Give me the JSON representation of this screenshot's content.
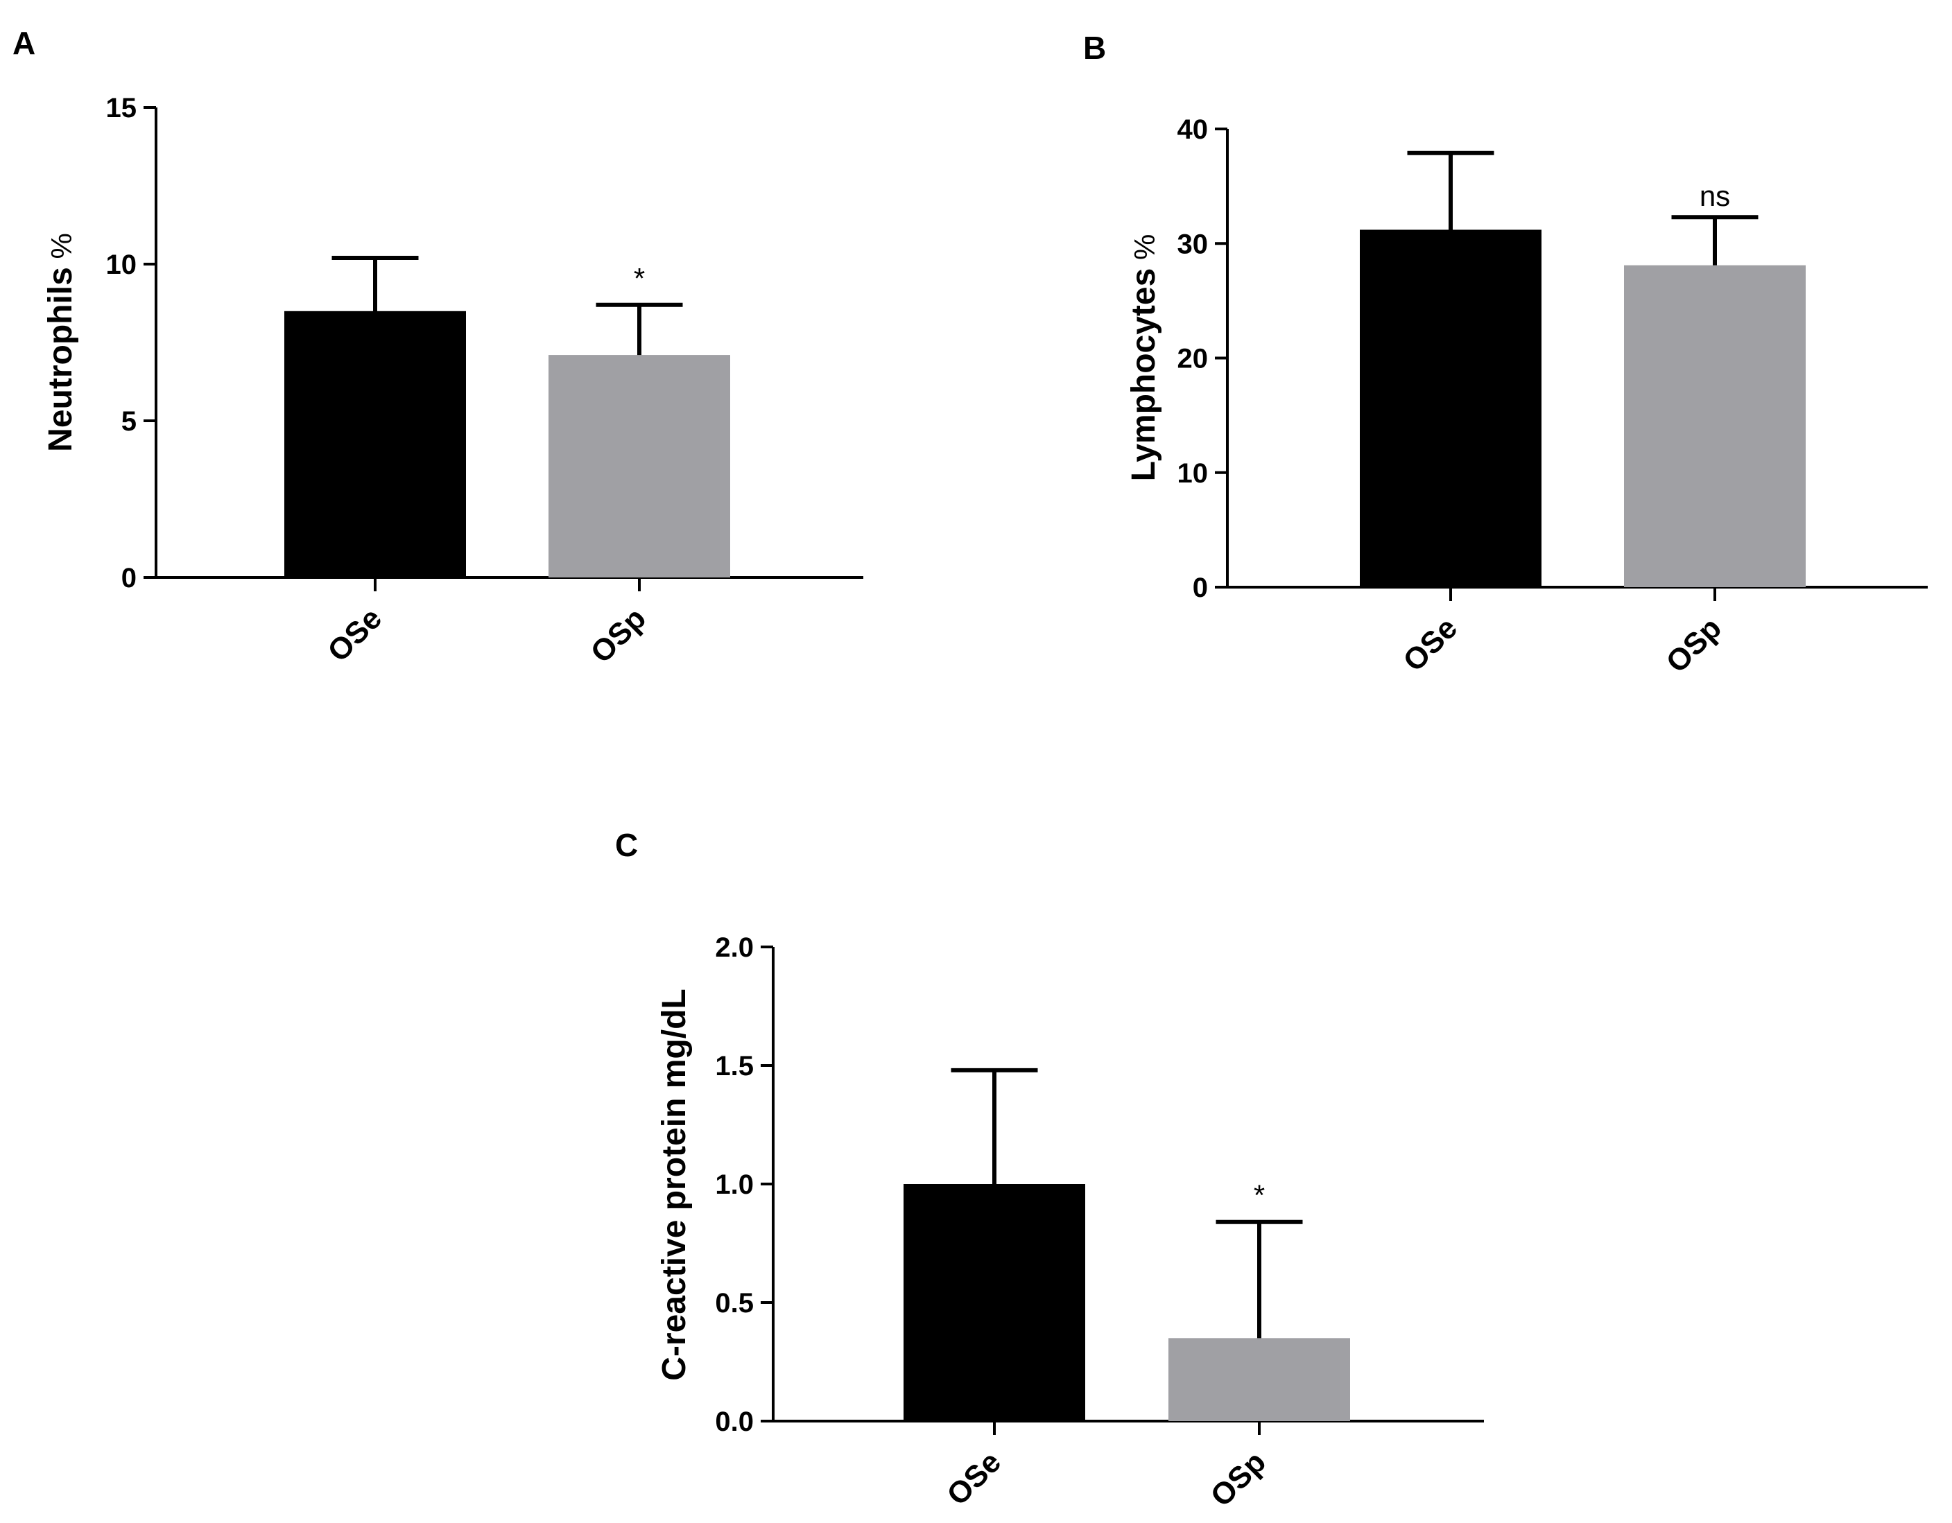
{
  "chart_data": [
    {
      "id": "A",
      "type": "bar",
      "panel_label": "A",
      "ylabel": "Neutrophils",
      "yunit": "%",
      "ylim": [
        0,
        15
      ],
      "yticks": [
        0,
        5,
        10,
        15
      ],
      "ytick_labels": [
        "0",
        "5",
        "10",
        "15"
      ],
      "categories": [
        "OSe",
        "OSp"
      ],
      "values": [
        8.5,
        7.1
      ],
      "errors": [
        1.7,
        1.6
      ],
      "colors": [
        "#000000",
        "#a0a0a4"
      ],
      "annotations": [
        "",
        "*"
      ]
    },
    {
      "id": "B",
      "type": "bar",
      "panel_label": "B",
      "ylabel": "Lymphocytes",
      "yunit": "%",
      "ylim": [
        0,
        40
      ],
      "yticks": [
        0,
        10,
        20,
        30,
        40
      ],
      "ytick_labels": [
        "0",
        "10",
        "20",
        "30",
        "40"
      ],
      "categories": [
        "OSe",
        "OSp"
      ],
      "values": [
        31.2,
        28.1
      ],
      "errors": [
        6.7,
        4.2
      ],
      "colors": [
        "#000000",
        "#a0a0a4"
      ],
      "annotations": [
        "",
        "ns"
      ]
    },
    {
      "id": "C",
      "type": "bar",
      "panel_label": "C",
      "ylabel": "C-reactive protein mg/dL",
      "yunit": "",
      "ylim": [
        0,
        2.0
      ],
      "yticks": [
        0,
        0.5,
        1.0,
        1.5,
        2.0
      ],
      "ytick_labels": [
        "0.0",
        "0.5",
        "1.0",
        "1.5",
        "2.0"
      ],
      "categories": [
        "OSe",
        "OSp"
      ],
      "values": [
        1.0,
        0.35
      ],
      "errors": [
        0.48,
        0.49
      ],
      "colors": [
        "#000000",
        "#a0a0a4"
      ],
      "annotations": [
        "",
        "*"
      ]
    }
  ]
}
